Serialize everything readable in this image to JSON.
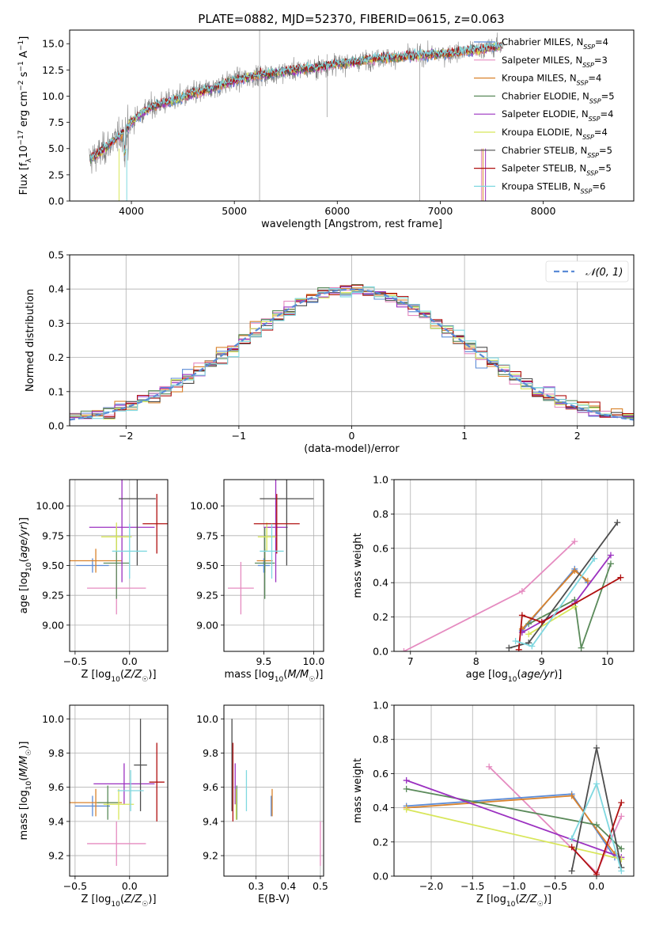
{
  "figure": {
    "title": "PLATE=0882, MJD=52370, FIBERID=0615, z=0.063"
  },
  "colors": {
    "Chabrier MILES": "#5b8bd6",
    "Salpeter MILES": "#e58bc0",
    "Kroupa MILES": "#d9822b",
    "Chabrier ELODIE": "#5a8a5a",
    "Salpeter ELODIE": "#9b30c0",
    "Kroupa ELODIE": "#d8e65a",
    "Chabrier STELIB": "#4d4d4d",
    "Salpeter STELIB": "#b01010",
    "Kroupa STELIB": "#7fd8e0",
    "data": "#808080",
    "normal": "#5b8bd6"
  },
  "chart_data": [
    {
      "id": "spectrum",
      "type": "line",
      "title": "PLATE=0882, MJD=52370, FIBERID=0615, z=0.063",
      "xlabel": "wavelength [Angstrom, rest frame]",
      "ylabel": "Flux [f_λ10^-17 erg cm^-2 s^-1 A^-1]",
      "xlim": [
        3400,
        8880
      ],
      "ylim": [
        0,
        16.3
      ],
      "xticks": [
        "4000",
        "5000",
        "6000",
        "7000",
        "8000"
      ],
      "yticks": [
        "0.0",
        "2.5",
        "5.0",
        "7.5",
        "10.0",
        "12.5",
        "15.0"
      ],
      "legend_position": "upper-right",
      "legend": [
        {
          "model": "Chabrier MILES",
          "n": "4"
        },
        {
          "model": "Salpeter MILES",
          "n": "3"
        },
        {
          "model": "Kroupa MILES",
          "n": "4"
        },
        {
          "model": "Chabrier ELODIE",
          "n": "5"
        },
        {
          "model": "Salpeter ELODIE",
          "n": "4"
        },
        {
          "model": "Kroupa ELODIE",
          "n": "4"
        },
        {
          "model": "Chabrier STELIB",
          "n": "5"
        },
        {
          "model": "Salpeter STELIB",
          "n": "5"
        },
        {
          "model": "Kroupa STELIB",
          "n": "6"
        }
      ],
      "continuum": {
        "x": [
          3600,
          3700,
          3800,
          3900,
          4000,
          4100,
          4200,
          4300,
          4400,
          4600,
          4800,
          5000,
          5200,
          5400,
          5600,
          5800,
          6000,
          6200,
          6400,
          6600,
          6800,
          7000,
          7200,
          7400,
          7600
        ],
        "y": [
          4.0,
          4.6,
          5.5,
          6.3,
          7.5,
          8.4,
          9.0,
          9.3,
          9.6,
          10.2,
          10.8,
          11.5,
          11.9,
          12.2,
          12.5,
          12.7,
          13.1,
          13.3,
          13.6,
          13.7,
          13.9,
          14.0,
          14.2,
          14.5,
          14.8
        ]
      }
    },
    {
      "id": "residuals",
      "type": "bar",
      "xlabel": "(data-model)/error",
      "ylabel": "Normed distribution",
      "xlim": [
        -2.5,
        2.5
      ],
      "ylim": [
        0,
        0.5
      ],
      "xticks": [
        "-2",
        "-1",
        "0",
        "1",
        "2"
      ],
      "yticks": [
        "0.0",
        "0.1",
        "0.2",
        "0.3",
        "0.4",
        "0.5"
      ],
      "legend": "𝒩(0, 1)",
      "legend_position": "upper-right",
      "bin_width": 0.1
    },
    {
      "id": "z-age",
      "type": "scatter",
      "xlabel": "Z [log10(Z/Z☉)]",
      "ylabel": "age  [log10(age/yr)]",
      "xlim": [
        -0.55,
        0.35
      ],
      "ylim": [
        8.78,
        10.22
      ],
      "xticks": [
        "-0.5",
        "0.0"
      ],
      "yticks": [
        "9.00",
        "9.25",
        "9.50",
        "9.75",
        "10.00"
      ],
      "points": [
        {
          "model": "Chabrier MILES",
          "x": -0.34,
          "y": 9.5,
          "xerr": 0.15,
          "yerr": 0.06
        },
        {
          "model": "Salpeter MILES",
          "x": -0.12,
          "y": 9.31,
          "xerr": 0.27,
          "yerr": 0.22
        },
        {
          "model": "Kroupa MILES",
          "x": -0.31,
          "y": 9.54,
          "xerr": 0.24,
          "yerr": 0.1
        },
        {
          "model": "Chabrier ELODIE",
          "x": -0.12,
          "y": 9.52,
          "xerr": 0.12,
          "yerr": 0.3
        },
        {
          "model": "Salpeter ELODIE",
          "x": -0.07,
          "y": 9.82,
          "xerr": 0.3,
          "yerr": 0.46
        },
        {
          "model": "Kroupa ELODIE",
          "x": -0.12,
          "y": 9.74,
          "xerr": 0.14,
          "yerr": 0.12
        },
        {
          "model": "Chabrier STELIB",
          "x": 0.07,
          "y": 10.06,
          "xerr": 0.17,
          "yerr": 0.56
        },
        {
          "model": "Salpeter STELIB",
          "x": 0.25,
          "y": 9.85,
          "xerr": 0.13,
          "yerr": 0.25
        },
        {
          "model": "Kroupa STELIB",
          "x": 0.0,
          "y": 9.62,
          "xerr": 0.16,
          "yerr": 0.23
        }
      ]
    },
    {
      "id": "mass-age",
      "type": "scatter",
      "xlabel": "mass [log10(M/M☉)]",
      "ylabel": "",
      "xlim": [
        9.1,
        10.1
      ],
      "ylim": [
        8.78,
        10.22
      ],
      "xticks": [
        "9.5",
        "10.0"
      ],
      "yticks": [
        "9.00",
        "9.25",
        "9.50",
        "9.75",
        "10.00"
      ],
      "points": [
        {
          "model": "Chabrier MILES",
          "x": 9.5,
          "y": 9.5,
          "xerr": 0.06,
          "yerr": 0.06
        },
        {
          "model": "Salpeter MILES",
          "x": 9.27,
          "y": 9.31,
          "xerr": 0.13,
          "yerr": 0.22
        },
        {
          "model": "Kroupa MILES",
          "x": 9.51,
          "y": 9.54,
          "xerr": 0.08,
          "yerr": 0.1
        },
        {
          "model": "Chabrier ELODIE",
          "x": 9.51,
          "y": 9.52,
          "xerr": 0.1,
          "yerr": 0.3
        },
        {
          "model": "Salpeter ELODIE",
          "x": 9.62,
          "y": 9.82,
          "xerr": 0.12,
          "yerr": 0.46
        },
        {
          "model": "Kroupa ELODIE",
          "x": 9.53,
          "y": 9.74,
          "xerr": 0.09,
          "yerr": 0.12
        },
        {
          "model": "Chabrier STELIB",
          "x": 9.73,
          "y": 10.06,
          "xerr": 0.27,
          "yerr": 0.56
        },
        {
          "model": "Salpeter STELIB",
          "x": 9.63,
          "y": 9.85,
          "xerr": 0.23,
          "yerr": 0.25
        },
        {
          "model": "Kroupa STELIB",
          "x": 9.58,
          "y": 9.62,
          "xerr": 0.12,
          "yerr": 0.23
        }
      ]
    },
    {
      "id": "age-weight",
      "type": "line",
      "xlabel": "age  [log10(age/yr)]",
      "ylabel": "mass weight",
      "xlim": [
        6.75,
        10.4
      ],
      "ylim": [
        0,
        1
      ],
      "xticks": [
        "7",
        "8",
        "9",
        "10"
      ],
      "yticks": [
        "0.0",
        "0.2",
        "0.4",
        "0.6",
        "0.8",
        "1.0"
      ],
      "series": [
        {
          "model": "Salpeter MILES",
          "x": [
            6.9,
            8.7,
            9.5
          ],
          "y": [
            0.0,
            0.35,
            0.64
          ]
        },
        {
          "model": "Chabrier MILES",
          "x": [
            8.7,
            9.5,
            9.7
          ],
          "y": [
            0.12,
            0.48,
            0.4
          ]
        },
        {
          "model": "Kroupa MILES",
          "x": [
            8.7,
            9.5,
            9.7
          ],
          "y": [
            0.13,
            0.47,
            0.41
          ]
        },
        {
          "model": "Chabrier ELODIE",
          "x": [
            8.8,
            9.5,
            9.6,
            10.05
          ],
          "y": [
            0.16,
            0.3,
            0.02,
            0.51
          ]
        },
        {
          "model": "Salpeter ELODIE",
          "x": [
            8.7,
            9.5,
            10.05
          ],
          "y": [
            0.11,
            0.28,
            0.56
          ]
        },
        {
          "model": "Kroupa ELODIE",
          "x": [
            8.8,
            9.5
          ],
          "y": [
            0.1,
            0.26
          ]
        },
        {
          "model": "Chabrier STELIB",
          "x": [
            8.5,
            8.8,
            10.15
          ],
          "y": [
            0.02,
            0.05,
            0.75
          ]
        },
        {
          "model": "Salpeter STELIB",
          "x": [
            8.65,
            8.7,
            9.0,
            10.2
          ],
          "y": [
            0.01,
            0.21,
            0.17,
            0.43
          ]
        },
        {
          "model": "Kroupa STELIB",
          "x": [
            8.6,
            8.85,
            9.8
          ],
          "y": [
            0.06,
            0.03,
            0.54
          ]
        }
      ]
    },
    {
      "id": "z-mass",
      "type": "scatter",
      "xlabel": "Z [log10(Z/Z☉)]",
      "ylabel": "mass [log10(M/M☉)]",
      "xlim": [
        -0.55,
        0.35
      ],
      "ylim": [
        9.08,
        10.08
      ],
      "xticks": [
        "-0.5",
        "0.0"
      ],
      "yticks": [
        "9.2",
        "9.4",
        "9.6",
        "9.8",
        "10.0"
      ],
      "points": [
        {
          "model": "Chabrier MILES",
          "x": -0.34,
          "y": 9.49,
          "xerr": 0.16,
          "yerr": 0.06
        },
        {
          "model": "Salpeter MILES",
          "x": -0.12,
          "y": 9.27,
          "xerr": 0.27,
          "yerr": 0.13
        },
        {
          "model": "Kroupa MILES",
          "x": -0.31,
          "y": 9.51,
          "xerr": 0.24,
          "yerr": 0.08
        },
        {
          "model": "Chabrier ELODIE",
          "x": -0.2,
          "y": 9.51,
          "xerr": 0.1,
          "yerr": 0.1
        },
        {
          "model": "Salpeter ELODIE",
          "x": -0.05,
          "y": 9.62,
          "xerr": 0.28,
          "yerr": 0.12
        },
        {
          "model": "Kroupa ELODIE",
          "x": -0.1,
          "y": 9.5,
          "xerr": 0.14,
          "yerr": 0.09
        },
        {
          "model": "Chabrier STELIB",
          "x": 0.1,
          "y": 9.73,
          "xerr": 0.06,
          "yerr": 0.27
        },
        {
          "model": "Salpeter STELIB",
          "x": 0.25,
          "y": 9.63,
          "xerr": 0.07,
          "yerr": 0.23
        },
        {
          "model": "Kroupa STELIB",
          "x": 0.01,
          "y": 9.58,
          "xerr": 0.12,
          "yerr": 0.12
        }
      ]
    },
    {
      "id": "ebv-mass",
      "type": "scatter",
      "xlabel": "E(B-V)",
      "ylabel": "",
      "xlim": [
        0.2,
        0.51
      ],
      "ylim": [
        9.08,
        10.08
      ],
      "xticks": [
        "0.3",
        "0.4",
        "0.5"
      ],
      "yticks": [
        "9.2",
        "9.4",
        "9.6",
        "9.8",
        "10.0"
      ],
      "points": [
        {
          "model": "Chabrier MILES",
          "x": 0.347,
          "y": 9.49,
          "yerr": 0.06
        },
        {
          "model": "Salpeter MILES",
          "x": 0.5,
          "y": 9.27,
          "yerr": 0.13
        },
        {
          "model": "Kroupa MILES",
          "x": 0.35,
          "y": 9.51,
          "yerr": 0.08
        },
        {
          "model": "Chabrier ELODIE",
          "x": 0.24,
          "y": 9.51,
          "yerr": 0.1
        },
        {
          "model": "Salpeter ELODIE",
          "x": 0.235,
          "y": 9.62,
          "yerr": 0.12
        },
        {
          "model": "Kroupa ELODIE",
          "x": 0.238,
          "y": 9.5,
          "yerr": 0.09
        },
        {
          "model": "Chabrier STELIB",
          "x": 0.225,
          "y": 9.73,
          "yerr": 0.27
        },
        {
          "model": "Salpeter STELIB",
          "x": 0.228,
          "y": 9.63,
          "yerr": 0.23
        },
        {
          "model": "Kroupa STELIB",
          "x": 0.27,
          "y": 9.58,
          "yerr": 0.12
        }
      ]
    },
    {
      "id": "z-weight",
      "type": "line",
      "xlabel": "Z [log10(Z/Z☉)]",
      "ylabel": "mass weight",
      "xlim": [
        -2.45,
        0.45
      ],
      "ylim": [
        0,
        1
      ],
      "xticks": [
        "-2.0",
        "-1.5",
        "-1.0",
        "-0.5",
        "0.0"
      ],
      "yticks": [
        "0.0",
        "0.2",
        "0.4",
        "0.6",
        "0.8",
        "1.0"
      ],
      "series": [
        {
          "model": "Salpeter MILES",
          "x": [
            -1.3,
            0.0,
            0.3
          ],
          "y": [
            0.64,
            0.02,
            0.35
          ]
        },
        {
          "model": "Chabrier MILES",
          "x": [
            -2.3,
            -0.3,
            0.22
          ],
          "y": [
            0.41,
            0.48,
            0.11
          ]
        },
        {
          "model": "Kroupa MILES",
          "x": [
            -2.3,
            -0.3,
            0.22
          ],
          "y": [
            0.4,
            0.47,
            0.13
          ]
        },
        {
          "model": "Chabrier ELODIE",
          "x": [
            -2.3,
            0.0,
            0.3
          ],
          "y": [
            0.51,
            0.3,
            0.16
          ]
        },
        {
          "model": "Salpeter ELODIE",
          "x": [
            -2.3,
            0.3
          ],
          "y": [
            0.56,
            0.11
          ]
        },
        {
          "model": "Kroupa ELODIE",
          "x": [
            -2.3,
            0.3
          ],
          "y": [
            0.39,
            0.1
          ]
        },
        {
          "model": "Chabrier STELIB",
          "x": [
            -0.3,
            0.0,
            0.3
          ],
          "y": [
            0.03,
            0.75,
            0.05
          ]
        },
        {
          "model": "Salpeter STELIB",
          "x": [
            -0.3,
            0.0,
            0.3
          ],
          "y": [
            0.17,
            0.01,
            0.43
          ]
        },
        {
          "model": "Kroupa STELIB",
          "x": [
            -0.3,
            0.0,
            0.3
          ],
          "y": [
            0.22,
            0.54,
            0.03
          ]
        }
      ]
    }
  ]
}
